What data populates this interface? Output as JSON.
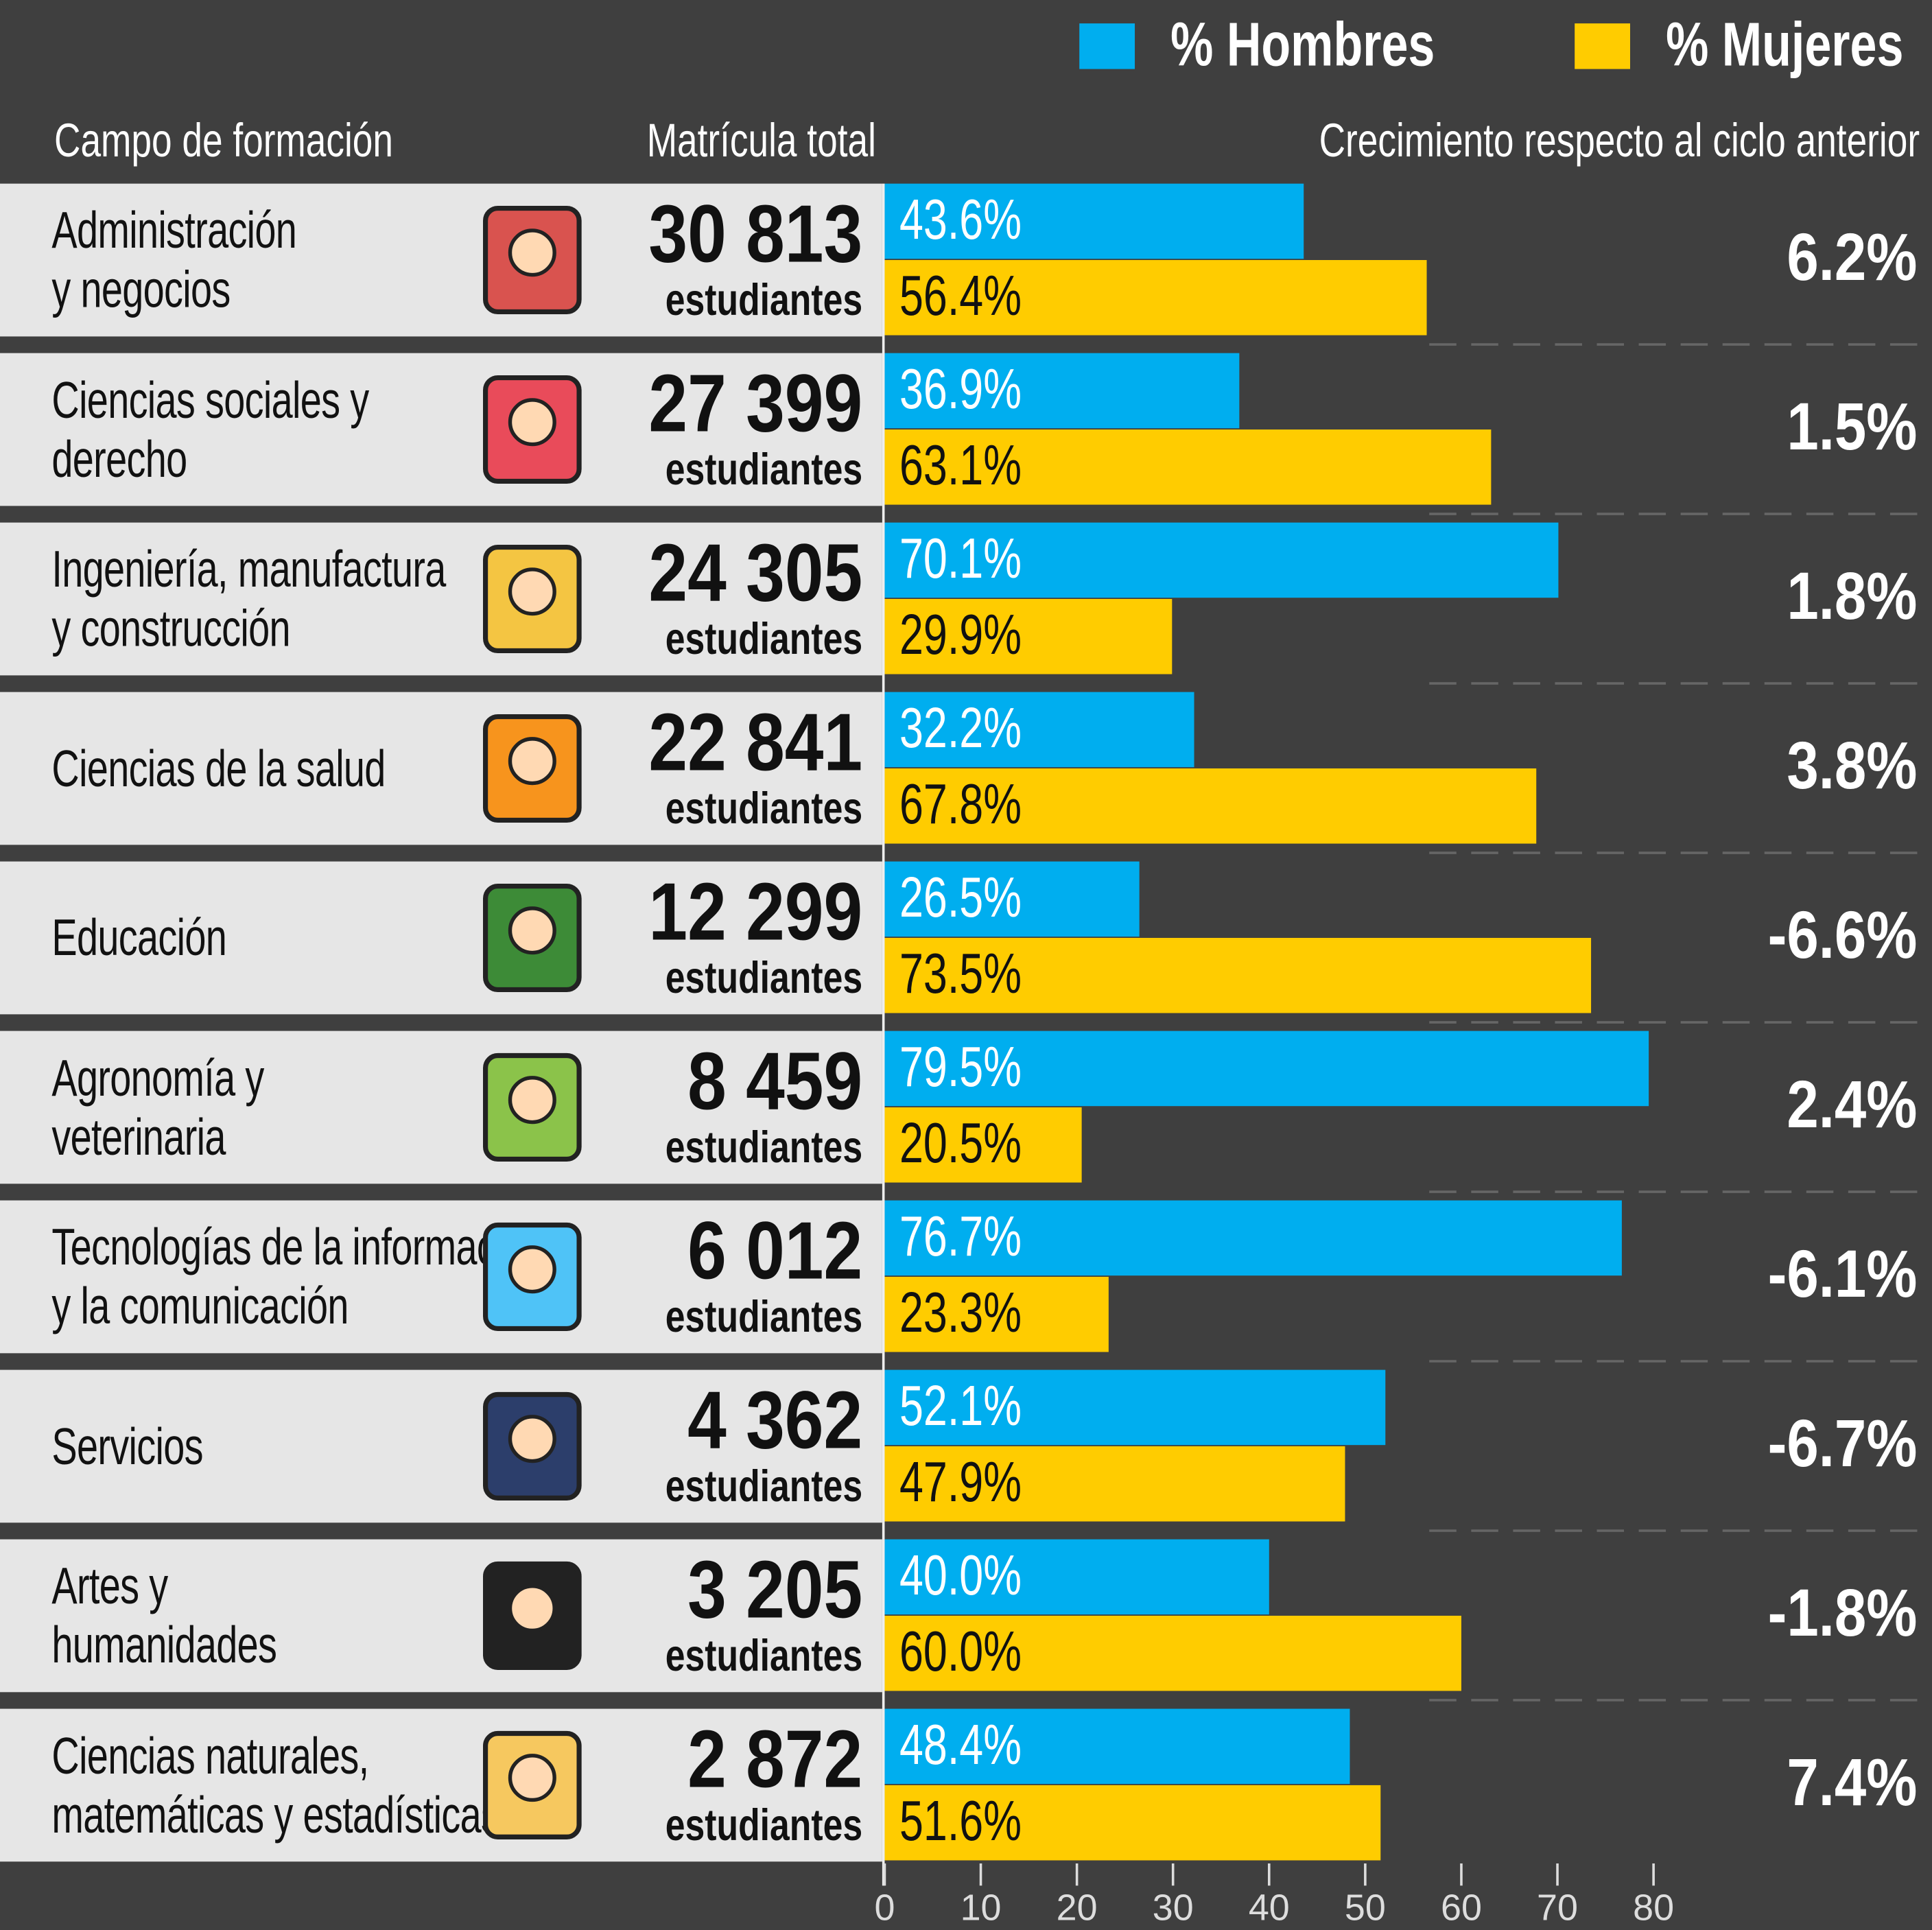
{
  "chart_data": {
    "type": "bar",
    "legend": "top-right",
    "column_headers": [
      "Campo de formación",
      "Matrícula total",
      "Crecimiento respecto al ciclo anterior"
    ],
    "categories": [
      "Administración\ny negocios",
      "Ciencias sociales y\nderecho",
      "Ingeniería, manufactura\ny construcción",
      "Ciencias de la salud",
      "Educación",
      "Agronomía y\nveterinaria",
      "Tecnologías de la información\ny la comunicación",
      "Servicios",
      "Artes y\nhumanidades",
      "Ciencias naturales,\nmatemáticas y estadísticas"
    ],
    "series": [
      {
        "name": "% Hombres",
        "color": "#00aeef",
        "values": [
          43.6,
          36.9,
          70.1,
          32.2,
          26.5,
          79.5,
          76.7,
          52.1,
          40.0,
          48.4
        ],
        "value_labels": [
          "43.6%",
          "36.9%",
          "70.1%",
          "32.2%",
          "26.5%",
          "79.5%",
          "76.7%",
          "52.1%",
          "40.0%",
          "48.4%"
        ]
      },
      {
        "name": "% Mujeres",
        "color": "#ffcc00",
        "values": [
          56.4,
          63.1,
          29.9,
          67.8,
          73.5,
          20.5,
          23.3,
          47.9,
          60.0,
          51.6
        ],
        "value_labels": [
          "56.4%",
          "63.1%",
          "29.9%",
          "67.8%",
          "73.5%",
          "20.5%",
          "23.3%",
          "47.9%",
          "60.0%",
          "51.6%"
        ]
      }
    ],
    "enrollment": {
      "unit": "estudiantes",
      "values": [
        30813,
        27399,
        24305,
        22841,
        12299,
        8459,
        6012,
        4362,
        3205,
        2872
      ],
      "value_labels": [
        "30 813",
        "27 399",
        "24 305",
        "22 841",
        "12 299",
        "8 459",
        "6 012",
        "4 362",
        "3 205",
        "2 872"
      ]
    },
    "growth": {
      "values": [
        6.2,
        1.5,
        1.8,
        3.8,
        -6.6,
        2.4,
        -6.1,
        -6.7,
        -1.8,
        7.4
      ],
      "value_labels": [
        "6.2%",
        "1.5%",
        "1.8%",
        "3.8%",
        "-6.6%",
        "2.4%",
        "-6.1%",
        "-6.7%",
        "-1.8%",
        "7.4%"
      ]
    },
    "xlim": [
      0,
      80
    ],
    "xticks": [
      0,
      10,
      20,
      30,
      40,
      50,
      60,
      70,
      80
    ]
  }
}
